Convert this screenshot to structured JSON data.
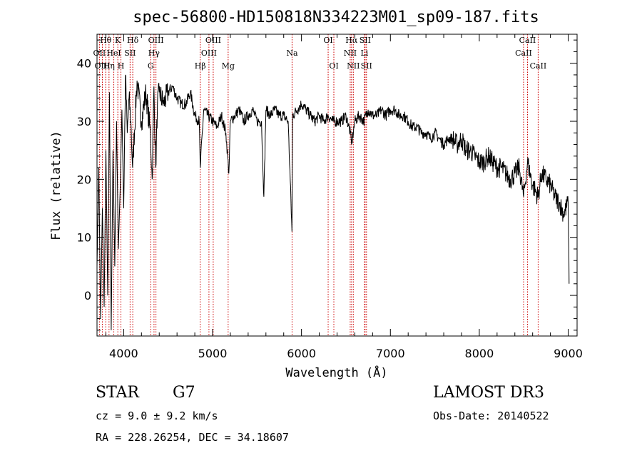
{
  "chart_data": {
    "type": "line",
    "title": "spec-56800-HD150818N334223M01_sp09-187.fits",
    "xlabel": "Wavelength (Å)",
    "ylabel": "Flux (relative)",
    "xlim": [
      3700,
      9100
    ],
    "ylim": [
      -7,
      45
    ],
    "xticks": [
      4000,
      5000,
      6000,
      7000,
      8000,
      9000
    ],
    "yticks": [
      0,
      10,
      20,
      30,
      40
    ],
    "series": [
      {
        "name": "spectrum",
        "x": [
          3700,
          3720,
          3740,
          3760,
          3780,
          3800,
          3820,
          3840,
          3860,
          3880,
          3900,
          3920,
          3940,
          3960,
          3980,
          4000,
          4020,
          4040,
          4060,
          4080,
          4100,
          4150,
          4200,
          4250,
          4300,
          4320,
          4340,
          4360,
          4380,
          4400,
          4450,
          4500,
          4550,
          4600,
          4650,
          4700,
          4750,
          4800,
          4850,
          4861,
          4900,
          4950,
          5000,
          5050,
          5100,
          5150,
          5183,
          5200,
          5250,
          5300,
          5350,
          5400,
          5450,
          5500,
          5550,
          5577,
          5600,
          5650,
          5700,
          5750,
          5800,
          5850,
          5893,
          5900,
          5950,
          6000,
          6050,
          6100,
          6150,
          6200,
          6250,
          6300,
          6350,
          6400,
          6450,
          6500,
          6550,
          6563,
          6600,
          6650,
          6700,
          6750,
          6800,
          6850,
          6900,
          6950,
          7000,
          7050,
          7100,
          7150,
          7200,
          7250,
          7300,
          7350,
          7400,
          7450,
          7500,
          7550,
          7600,
          7650,
          7700,
          7750,
          7800,
          7850,
          7900,
          7950,
          8000,
          8050,
          8100,
          8150,
          8200,
          8250,
          8300,
          8350,
          8400,
          8450,
          8498,
          8542,
          8600,
          8662,
          8700,
          8750,
          8800,
          8850,
          8900,
          8950,
          9000,
          9010
        ],
        "values": [
          5,
          22,
          -4,
          15,
          -2,
          25,
          0,
          35,
          -6,
          25,
          5,
          30,
          8,
          18,
          32,
          15,
          38,
          28,
          34,
          30,
          22,
          37,
          30,
          35,
          28,
          20,
          36,
          22,
          33,
          35,
          33,
          35,
          36,
          34,
          33,
          33,
          35,
          31,
          30,
          22,
          32,
          31,
          30,
          29,
          31,
          28,
          21,
          30,
          31,
          32,
          30,
          31,
          32,
          30,
          30,
          17,
          32,
          31,
          32,
          31,
          31,
          30,
          11,
          31,
          32,
          33,
          32,
          31,
          30,
          31,
          30,
          31,
          30,
          30,
          30,
          31,
          28,
          26,
          30,
          31,
          30,
          32,
          31,
          31,
          32,
          31,
          32,
          32,
          31,
          31,
          30,
          29,
          29,
          28,
          28,
          27,
          28,
          27,
          26,
          27,
          27,
          26,
          27,
          25,
          25,
          24,
          23,
          23,
          24,
          23,
          22,
          22,
          21,
          20,
          21,
          22,
          17,
          23,
          19,
          17,
          21,
          20,
          19,
          17,
          16,
          14,
          16,
          2
        ]
      }
    ],
    "lines": [
      {
        "label": "Hθ",
        "x": 3798,
        "row": 0
      },
      {
        "label": "OII",
        "x": 3727,
        "row": 1
      },
      {
        "label": "OIII",
        "x": 3760,
        "row": 2
      },
      {
        "label": "Hη",
        "x": 3835,
        "row": 2
      },
      {
        "label": "HeI",
        "x": 3889,
        "row": 1
      },
      {
        "label": "K",
        "x": 3934,
        "row": 0
      },
      {
        "label": "H",
        "x": 3969,
        "row": 2
      },
      {
        "label": "SII",
        "x": 4072,
        "row": 1
      },
      {
        "label": "Hδ",
        "x": 4102,
        "row": 0
      },
      {
        "label": "OIII",
        "x": 4363,
        "row": 0
      },
      {
        "label": "Hγ",
        "x": 4341,
        "row": 1
      },
      {
        "label": "G",
        "x": 4304,
        "row": 2
      },
      {
        "label": "Hβ",
        "x": 4861,
        "row": 2
      },
      {
        "label": "OIII",
        "x": 4959,
        "row": 1
      },
      {
        "label": "OIII",
        "x": 5007,
        "row": 0
      },
      {
        "label": "Mg",
        "x": 5175,
        "row": 2
      },
      {
        "label": "Na",
        "x": 5894,
        "row": 1
      },
      {
        "label": "OI",
        "x": 6300,
        "row": 0
      },
      {
        "label": "OI",
        "x": 6364,
        "row": 2
      },
      {
        "label": "NII",
        "x": 6548,
        "row": 1
      },
      {
        "label": "Hα",
        "x": 6563,
        "row": 0
      },
      {
        "label": "NII",
        "x": 6583,
        "row": 2
      },
      {
        "label": "Li",
        "x": 6708,
        "row": 1
      },
      {
        "label": "SII",
        "x": 6716,
        "row": 0
      },
      {
        "label": "SII",
        "x": 6731,
        "row": 2
      },
      {
        "label": "CaII",
        "x": 8498,
        "row": 1
      },
      {
        "label": "CaII",
        "x": 8542,
        "row": 0
      },
      {
        "label": "CaII",
        "x": 8662,
        "row": 2
      }
    ],
    "line_color": "#cc0000",
    "series_color": "#000000"
  },
  "info": {
    "object_class": "STAR",
    "subclass": "G7",
    "cz": "cz = 9.0 ± 9.2 km/s",
    "coords": "RA = 228.26254, DEC =  34.18607",
    "survey": "LAMOST DR3",
    "obs_date": "Obs-Date: 20140522"
  }
}
